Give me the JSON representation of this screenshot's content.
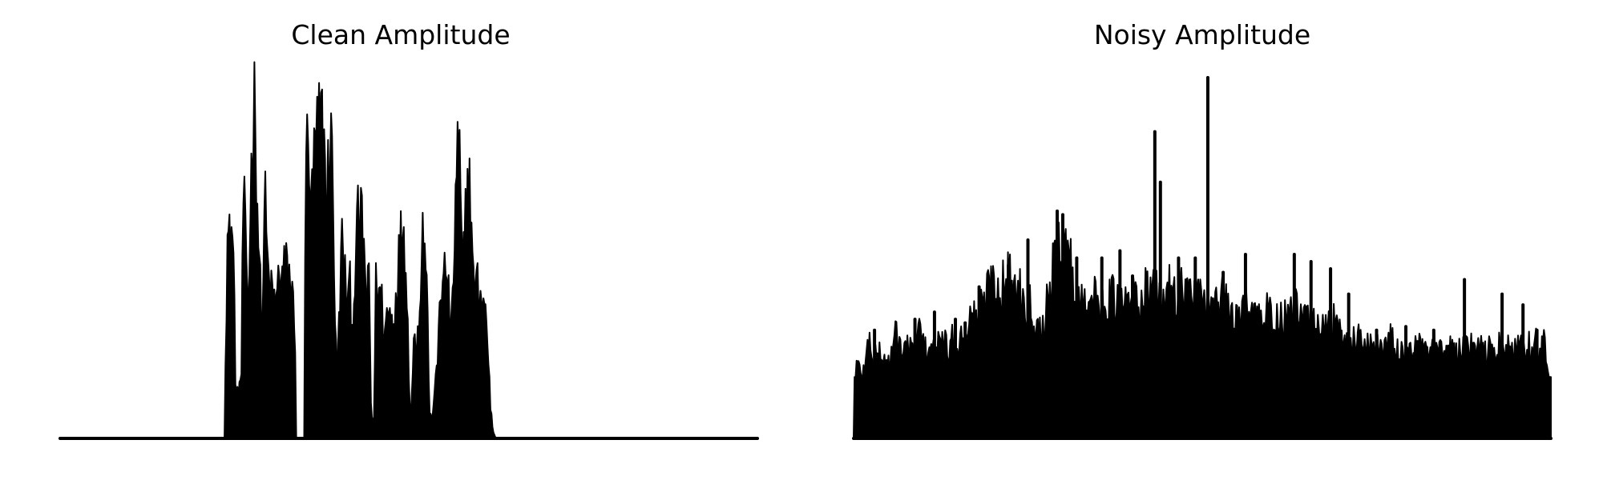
{
  "chart_data": [
    {
      "type": "area",
      "title": "Clean Amplitude",
      "xlabel": "",
      "ylabel": "",
      "axes_visible": false,
      "grid": false,
      "color": "#000000",
      "ylim": [
        0,
        1
      ],
      "x_range": [
        0,
        1
      ],
      "envelope": [
        [
          0.0,
          0.0
        ],
        [
          0.236,
          0.0
        ],
        [
          0.237,
          0.25
        ],
        [
          0.24,
          0.6
        ],
        [
          0.243,
          0.58
        ],
        [
          0.246,
          0.64
        ],
        [
          0.249,
          0.52
        ],
        [
          0.252,
          0.12
        ],
        [
          0.256,
          0.14
        ],
        [
          0.26,
          0.2
        ],
        [
          0.263,
          0.76
        ],
        [
          0.266,
          0.55
        ],
        [
          0.27,
          0.4
        ],
        [
          0.274,
          0.78
        ],
        [
          0.277,
          1.0
        ],
        [
          0.28,
          0.99
        ],
        [
          0.283,
          0.7
        ],
        [
          0.287,
          0.45
        ],
        [
          0.29,
          0.3
        ],
        [
          0.293,
          0.75
        ],
        [
          0.297,
          0.54
        ],
        [
          0.3,
          0.45
        ],
        [
          0.305,
          0.42
        ],
        [
          0.31,
          0.4
        ],
        [
          0.314,
          0.5
        ],
        [
          0.318,
          0.48
        ],
        [
          0.322,
          0.51
        ],
        [
          0.326,
          0.5
        ],
        [
          0.33,
          0.48
        ],
        [
          0.334,
          0.4
        ],
        [
          0.337,
          0.35
        ],
        [
          0.338,
          0.0
        ],
        [
          0.35,
          0.0
        ],
        [
          0.351,
          0.5
        ],
        [
          0.354,
          0.9
        ],
        [
          0.357,
          0.85
        ],
        [
          0.36,
          0.65
        ],
        [
          0.363,
          0.8
        ],
        [
          0.367,
          0.88
        ],
        [
          0.37,
          0.9
        ],
        [
          0.373,
          0.94
        ],
        [
          0.376,
          0.93
        ],
        [
          0.379,
          0.88
        ],
        [
          0.382,
          0.65
        ],
        [
          0.385,
          0.82
        ],
        [
          0.388,
          0.9
        ],
        [
          0.391,
          0.8
        ],
        [
          0.394,
          0.4
        ],
        [
          0.397,
          0.15
        ],
        [
          0.4,
          0.35
        ],
        [
          0.404,
          0.59
        ],
        [
          0.408,
          0.49
        ],
        [
          0.412,
          0.4
        ],
        [
          0.416,
          0.45
        ],
        [
          0.419,
          0.3
        ],
        [
          0.423,
          0.51
        ],
        [
          0.427,
          0.64
        ],
        [
          0.431,
          0.65
        ],
        [
          0.434,
          0.62
        ],
        [
          0.437,
          0.5
        ],
        [
          0.44,
          0.4
        ],
        [
          0.443,
          0.48
        ],
        [
          0.446,
          0.07
        ],
        [
          0.45,
          0.05
        ],
        [
          0.453,
          0.47
        ],
        [
          0.457,
          0.43
        ],
        [
          0.461,
          0.42
        ],
        [
          0.465,
          0.3
        ],
        [
          0.469,
          0.38
        ],
        [
          0.473,
          0.38
        ],
        [
          0.476,
          0.35
        ],
        [
          0.48,
          0.38
        ],
        [
          0.484,
          0.5
        ],
        [
          0.488,
          0.58
        ],
        [
          0.492,
          0.64
        ],
        [
          0.496,
          0.55
        ],
        [
          0.5,
          0.2
        ],
        [
          0.503,
          0.05
        ],
        [
          0.507,
          0.28
        ],
        [
          0.511,
          0.3
        ],
        [
          0.515,
          0.35
        ],
        [
          0.519,
          0.62
        ],
        [
          0.522,
          0.6
        ],
        [
          0.526,
          0.5
        ],
        [
          0.529,
          0.1
        ],
        [
          0.533,
          0.05
        ],
        [
          0.537,
          0.15
        ],
        [
          0.541,
          0.2
        ],
        [
          0.545,
          0.47
        ],
        [
          0.549,
          0.43
        ],
        [
          0.553,
          0.53
        ],
        [
          0.557,
          0.42
        ],
        [
          0.561,
          0.3
        ],
        [
          0.565,
          0.55
        ],
        [
          0.569,
          0.85
        ],
        [
          0.573,
          0.82
        ],
        [
          0.577,
          0.45
        ],
        [
          0.581,
          0.65
        ],
        [
          0.585,
          0.78
        ],
        [
          0.589,
          0.7
        ],
        [
          0.593,
          0.44
        ],
        [
          0.597,
          0.46
        ],
        [
          0.601,
          0.45
        ],
        [
          0.605,
          0.41
        ],
        [
          0.609,
          0.4
        ],
        [
          0.613,
          0.3
        ],
        [
          0.617,
          0.1
        ],
        [
          0.621,
          0.02
        ],
        [
          0.625,
          0.0
        ],
        [
          1.0,
          0.0
        ]
      ]
    },
    {
      "type": "area",
      "title": "Noisy Amplitude",
      "xlabel": "",
      "ylabel": "",
      "axes_visible": false,
      "grid": false,
      "color": "#000000",
      "ylim": [
        0,
        1
      ],
      "x_range": [
        0,
        1
      ],
      "floor": 0.17,
      "envelope": [
        [
          0.0,
          0.0
        ],
        [
          0.004,
          0.22
        ],
        [
          0.01,
          0.2
        ],
        [
          0.016,
          0.2
        ],
        [
          0.022,
          0.3
        ],
        [
          0.03,
          0.23
        ],
        [
          0.038,
          0.26
        ],
        [
          0.046,
          0.22
        ],
        [
          0.054,
          0.24
        ],
        [
          0.062,
          0.32
        ],
        [
          0.07,
          0.25
        ],
        [
          0.078,
          0.28
        ],
        [
          0.086,
          0.24
        ],
        [
          0.094,
          0.33
        ],
        [
          0.102,
          0.26
        ],
        [
          0.11,
          0.28
        ],
        [
          0.118,
          0.26
        ],
        [
          0.126,
          0.3
        ],
        [
          0.134,
          0.26
        ],
        [
          0.142,
          0.29
        ],
        [
          0.15,
          0.28
        ],
        [
          0.158,
          0.31
        ],
        [
          0.166,
          0.35
        ],
        [
          0.174,
          0.36
        ],
        [
          0.182,
          0.38
        ],
        [
          0.19,
          0.42
        ],
        [
          0.198,
          0.48
        ],
        [
          0.206,
          0.44
        ],
        [
          0.214,
          0.46
        ],
        [
          0.222,
          0.48
        ],
        [
          0.23,
          0.45
        ],
        [
          0.238,
          0.44
        ],
        [
          0.246,
          0.4
        ],
        [
          0.254,
          0.4
        ],
        [
          0.262,
          0.34
        ],
        [
          0.27,
          0.32
        ],
        [
          0.278,
          0.4
        ],
        [
          0.286,
          0.5
        ],
        [
          0.292,
          0.58
        ],
        [
          0.298,
          0.6
        ],
        [
          0.304,
          0.56
        ],
        [
          0.31,
          0.54
        ],
        [
          0.316,
          0.42
        ],
        [
          0.322,
          0.4
        ],
        [
          0.33,
          0.44
        ],
        [
          0.338,
          0.42
        ],
        [
          0.346,
          0.41
        ],
        [
          0.354,
          0.4
        ],
        [
          0.362,
          0.4
        ],
        [
          0.37,
          0.42
        ],
        [
          0.378,
          0.4
        ],
        [
          0.386,
          0.41
        ],
        [
          0.394,
          0.39
        ],
        [
          0.402,
          0.42
        ],
        [
          0.41,
          0.4
        ],
        [
          0.418,
          0.44
        ],
        [
          0.426,
          0.42
        ],
        [
          0.434,
          0.43
        ],
        [
          0.442,
          0.42
        ],
        [
          0.45,
          0.44
        ],
        [
          0.458,
          0.45
        ],
        [
          0.466,
          0.44
        ],
        [
          0.474,
          0.45
        ],
        [
          0.482,
          0.43
        ],
        [
          0.49,
          0.42
        ],
        [
          0.498,
          0.4
        ],
        [
          0.506,
          0.4
        ],
        [
          0.514,
          0.42
        ],
        [
          0.522,
          0.4
        ],
        [
          0.53,
          0.41
        ],
        [
          0.538,
          0.38
        ],
        [
          0.546,
          0.34
        ],
        [
          0.554,
          0.35
        ],
        [
          0.562,
          0.4
        ],
        [
          0.57,
          0.42
        ],
        [
          0.578,
          0.36
        ],
        [
          0.586,
          0.34
        ],
        [
          0.594,
          0.38
        ],
        [
          0.602,
          0.36
        ],
        [
          0.61,
          0.34
        ],
        [
          0.618,
          0.35
        ],
        [
          0.626,
          0.36
        ],
        [
          0.634,
          0.38
        ],
        [
          0.642,
          0.35
        ],
        [
          0.65,
          0.36
        ],
        [
          0.658,
          0.34
        ],
        [
          0.666,
          0.33
        ],
        [
          0.674,
          0.36
        ],
        [
          0.682,
          0.34
        ],
        [
          0.69,
          0.34
        ],
        [
          0.698,
          0.3
        ],
        [
          0.706,
          0.28
        ],
        [
          0.714,
          0.3
        ],
        [
          0.722,
          0.29
        ],
        [
          0.73,
          0.3
        ],
        [
          0.738,
          0.28
        ],
        [
          0.746,
          0.26
        ],
        [
          0.754,
          0.28
        ],
        [
          0.762,
          0.27
        ],
        [
          0.77,
          0.29
        ],
        [
          0.778,
          0.26
        ],
        [
          0.786,
          0.25
        ],
        [
          0.794,
          0.27
        ],
        [
          0.802,
          0.26
        ],
        [
          0.81,
          0.28
        ],
        [
          0.818,
          0.25
        ],
        [
          0.826,
          0.26
        ],
        [
          0.834,
          0.27
        ],
        [
          0.842,
          0.25
        ],
        [
          0.85,
          0.26
        ],
        [
          0.858,
          0.27
        ],
        [
          0.866,
          0.25
        ],
        [
          0.874,
          0.26
        ],
        [
          0.882,
          0.27
        ],
        [
          0.89,
          0.26
        ],
        [
          0.898,
          0.27
        ],
        [
          0.906,
          0.25
        ],
        [
          0.914,
          0.27
        ],
        [
          0.922,
          0.26
        ],
        [
          0.93,
          0.28
        ],
        [
          0.938,
          0.26
        ],
        [
          0.946,
          0.27
        ],
        [
          0.954,
          0.26
        ],
        [
          0.962,
          0.28
        ],
        [
          0.97,
          0.27
        ],
        [
          0.978,
          0.28
        ],
        [
          0.986,
          0.27
        ],
        [
          0.992,
          0.29
        ],
        [
          0.996,
          0.16
        ],
        [
          1.0,
          0.16
        ]
      ],
      "spikes": [
        [
          0.03,
          0.3
        ],
        [
          0.088,
          0.33
        ],
        [
          0.116,
          0.35
        ],
        [
          0.146,
          0.33
        ],
        [
          0.16,
          0.32
        ],
        [
          0.18,
          0.42
        ],
        [
          0.204,
          0.36
        ],
        [
          0.222,
          0.48
        ],
        [
          0.25,
          0.55
        ],
        [
          0.292,
          0.63
        ],
        [
          0.3,
          0.62
        ],
        [
          0.32,
          0.5
        ],
        [
          0.356,
          0.5
        ],
        [
          0.382,
          0.52
        ],
        [
          0.4,
          0.45
        ],
        [
          0.432,
          0.85
        ],
        [
          0.44,
          0.71
        ],
        [
          0.466,
          0.5
        ],
        [
          0.49,
          0.5
        ],
        [
          0.508,
          1.0
        ],
        [
          0.53,
          0.46
        ],
        [
          0.562,
          0.51
        ],
        [
          0.632,
          0.51
        ],
        [
          0.656,
          0.49
        ],
        [
          0.684,
          0.47
        ],
        [
          0.71,
          0.4
        ],
        [
          0.75,
          0.3
        ],
        [
          0.792,
          0.31
        ],
        [
          0.832,
          0.3
        ],
        [
          0.876,
          0.44
        ],
        [
          0.93,
          0.4
        ],
        [
          0.96,
          0.37
        ],
        [
          0.98,
          0.3
        ]
      ]
    }
  ]
}
